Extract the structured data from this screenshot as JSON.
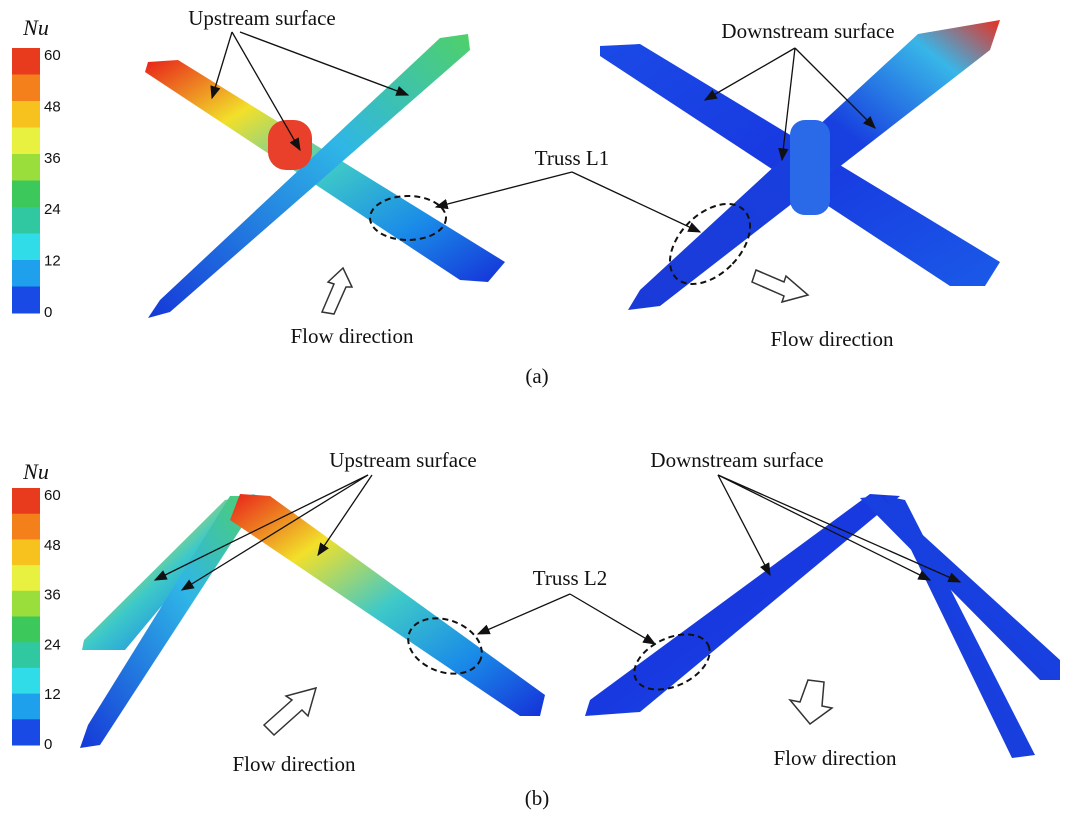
{
  "panels": [
    {
      "label": "(a)",
      "colorbar": {
        "title": "Nu",
        "ticks": [
          60,
          48,
          36,
          24,
          12,
          0
        ]
      },
      "upstream_label": "Upstream surface",
      "downstream_label": "Downstream surface",
      "truss_label": "Truss L1",
      "flow_labels": [
        "Flow direction",
        "Flow direction"
      ]
    },
    {
      "label": "(b)",
      "colorbar": {
        "title": "Nu",
        "ticks": [
          60,
          48,
          36,
          24,
          12,
          0
        ]
      },
      "upstream_label": "Upstream surface",
      "downstream_label": "Downstream surface",
      "truss_label": "Truss L2",
      "flow_labels": [
        "Flow direction",
        "Flow direction"
      ]
    }
  ]
}
